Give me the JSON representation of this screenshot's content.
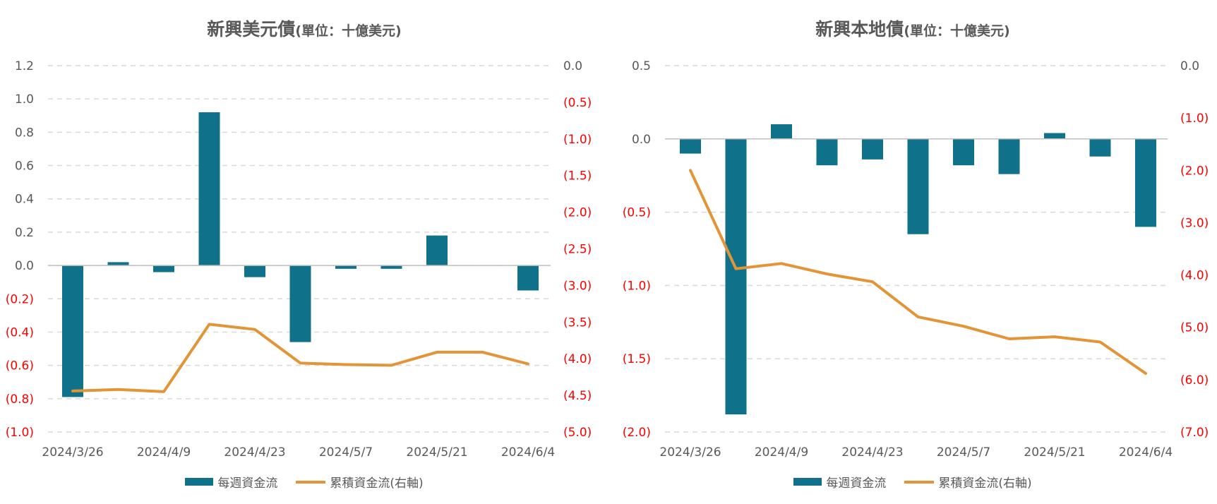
{
  "legend": {
    "bar_label": "每週資金流",
    "line_label": "累積資金流(右軸)"
  },
  "colors": {
    "bar": "#10718b",
    "line": "#e39437",
    "negative_tick": "#ff0000",
    "axis_text": "#595959",
    "grid": "#d9d9d9"
  },
  "chart_data": [
    {
      "type": "bar",
      "title": "新興美元債",
      "subtitle": "(單位：十億美元)",
      "xtick_labels": [
        "2024/3/26",
        "2024/4/9",
        "2024/4/23",
        "2024/5/7",
        "2024/5/21",
        "2024/6/4"
      ],
      "x": [
        "2024/3/26",
        "2024/4/2",
        "2024/4/9",
        "2024/4/16",
        "2024/4/23",
        "2024/4/30",
        "2024/5/7",
        "2024/5/14",
        "2024/5/21",
        "2024/5/28",
        "2024/6/4"
      ],
      "series": [
        {
          "name": "每週資金流",
          "type": "bar",
          "axis": "left",
          "values": [
            -0.79,
            0.02,
            -0.04,
            0.92,
            -0.07,
            -0.46,
            -0.02,
            -0.02,
            0.18,
            0.0,
            -0.15
          ]
        },
        {
          "name": "累積資金流(右軸)",
          "type": "line",
          "axis": "right",
          "values": [
            -4.44,
            -4.42,
            -4.45,
            -3.53,
            -3.6,
            -4.06,
            -4.08,
            -4.09,
            -3.91,
            -3.91,
            -4.07
          ]
        }
      ],
      "ylim_left": [
        -1.0,
        1.2
      ],
      "yticks_left": [
        "(1.0)",
        "(0.8)",
        "(0.6)",
        "(0.4)",
        "(0.2)",
        "0.0",
        "0.2",
        "0.4",
        "0.6",
        "0.8",
        "1.0",
        "1.2"
      ],
      "ylim_right": [
        -5.0,
        0.0
      ],
      "yticks_right": [
        "(5.0)",
        "(4.5)",
        "(4.0)",
        "(3.5)",
        "(3.0)",
        "(2.5)",
        "(2.0)",
        "(1.5)",
        "(1.0)",
        "(0.5)",
        "0.0"
      ],
      "grid": true,
      "legend_position": "bottom"
    },
    {
      "type": "bar",
      "title": "新興本地債",
      "subtitle": "(單位：十億美元)",
      "xtick_labels": [
        "2024/3/26",
        "2024/4/9",
        "2024/4/23",
        "2024/5/7",
        "2024/5/21",
        "2024/6/4"
      ],
      "x": [
        "2024/3/26",
        "2024/4/2",
        "2024/4/9",
        "2024/4/16",
        "2024/4/23",
        "2024/4/30",
        "2024/5/7",
        "2024/5/14",
        "2024/5/21",
        "2024/5/28",
        "2024/6/4"
      ],
      "series": [
        {
          "name": "每週資金流",
          "type": "bar",
          "axis": "left",
          "values": [
            -0.1,
            -1.88,
            0.1,
            -0.18,
            -0.14,
            -0.65,
            -0.18,
            -0.24,
            0.04,
            -0.12,
            -0.6
          ]
        },
        {
          "name": "累積資金流(右軸)",
          "type": "line",
          "axis": "right",
          "values": [
            -2.0,
            -3.88,
            -3.78,
            -3.98,
            -4.13,
            -4.8,
            -4.98,
            -5.22,
            -5.18,
            -5.28,
            -5.88
          ]
        }
      ],
      "ylim_left": [
        -2.0,
        0.5
      ],
      "yticks_left": [
        "(2.0)",
        "(1.5)",
        "(1.0)",
        "(0.5)",
        "0.0",
        "0.5"
      ],
      "ylim_right": [
        -7.0,
        0.0
      ],
      "yticks_right": [
        "(7.0)",
        "(6.0)",
        "(5.0)",
        "(4.0)",
        "(3.0)",
        "(2.0)",
        "(1.0)",
        "0.0"
      ],
      "grid": true,
      "legend_position": "bottom"
    }
  ]
}
